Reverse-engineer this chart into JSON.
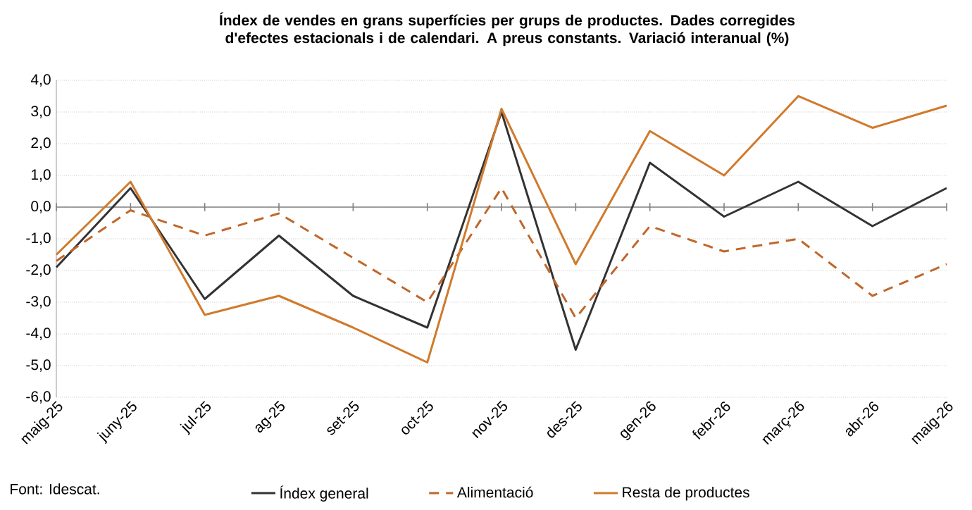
{
  "chart_data": {
    "type": "line",
    "title": "Índex de vendes en grans superfícies per grups de productes.  Dades corregides d'efectes estacionals i de calendari. A preus constants. Variació interanual (%)",
    "categories": [
      "maig-25",
      "juny-25",
      "jul-25",
      "ag-25",
      "set-25",
      "oct-25",
      "nov-25",
      "des-25",
      "gen-26",
      "febr-26",
      "març-26",
      "abr-26",
      "maig-26"
    ],
    "series": [
      {
        "name": "Índex general",
        "color": "#333333",
        "line_style": "solid",
        "values": [
          -1.9,
          0.6,
          -2.9,
          -0.9,
          -2.8,
          -3.8,
          3.0,
          -4.5,
          1.4,
          -0.3,
          0.8,
          -0.6,
          0.6
        ]
      },
      {
        "name": "Alimentació",
        "color": "#c0672a",
        "line_style": "dashed",
        "values": [
          -1.7,
          -0.1,
          -0.9,
          -0.2,
          -1.6,
          -3.0,
          0.6,
          -3.5,
          -0.6,
          -1.4,
          -1.0,
          -2.8,
          -1.8
        ]
      },
      {
        "name": "Resta de productes",
        "color": "#d07a2c",
        "line_style": "solid",
        "values": [
          -1.5,
          0.8,
          -3.4,
          -2.8,
          -3.8,
          -4.9,
          3.1,
          -1.8,
          2.4,
          1.0,
          3.5,
          2.5,
          3.2
        ]
      }
    ],
    "ylim": [
      -6,
      4
    ],
    "yticks": [
      {
        "value": -6,
        "label": "-6,0"
      },
      {
        "value": -5,
        "label": "-5,0"
      },
      {
        "value": -4,
        "label": "-4,0"
      },
      {
        "value": -3,
        "label": "-3,0"
      },
      {
        "value": -2,
        "label": "-2,0"
      },
      {
        "value": -1,
        "label": "-1,0"
      },
      {
        "value": 0,
        "label": "0,0"
      },
      {
        "value": 1,
        "label": "1,0"
      },
      {
        "value": 2,
        "label": "2,0"
      },
      {
        "value": 3,
        "label": "3,0"
      },
      {
        "value": 4,
        "label": "4,0"
      }
    ],
    "grid": "y",
    "legend": "bottom",
    "marker": "none",
    "annotations": [
      "Font: Idescat."
    ]
  }
}
